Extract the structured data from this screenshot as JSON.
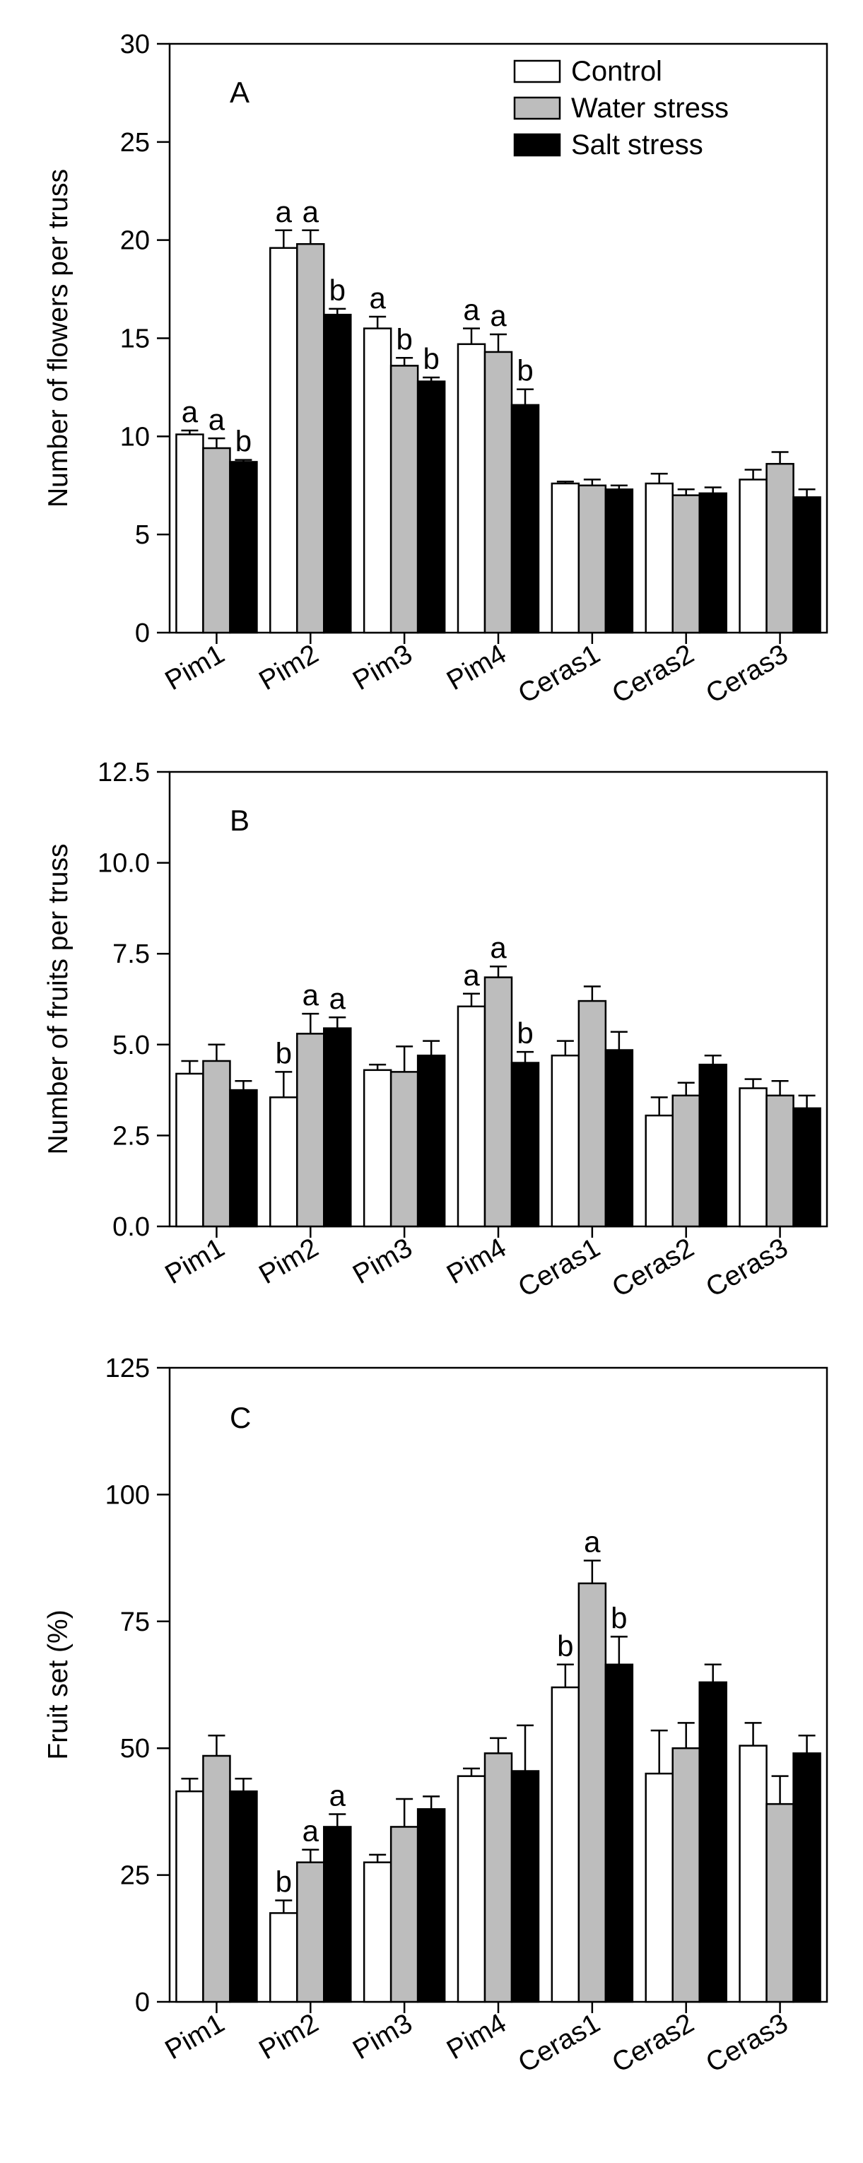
{
  "colors": {
    "control": "#ffffff",
    "water": "#bdbdbd",
    "salt": "#000000",
    "axis": "#000000"
  },
  "legend": {
    "entries": [
      {
        "name": "Control",
        "color": "#ffffff"
      },
      {
        "name": "Water stress",
        "color": "#bdbdbd"
      },
      {
        "name": "Salt stress",
        "color": "#000000"
      }
    ]
  },
  "chart_data": [
    {
      "type": "bar",
      "panel": "A",
      "title": "",
      "xlabel": "",
      "ylabel": "Number of flowers per truss",
      "ylim": [
        0,
        30
      ],
      "yticks": [
        "0",
        "5",
        "10",
        "15",
        "20",
        "25",
        "30"
      ],
      "ytick_values": [
        0,
        5,
        10,
        15,
        20,
        25,
        30
      ],
      "categories": [
        "Pim1",
        "Pim2",
        "Pim3",
        "Pim4",
        "Ceras1",
        "Ceras2",
        "Ceras3"
      ],
      "series": [
        {
          "name": "Control",
          "values": [
            10.1,
            19.6,
            15.5,
            14.7,
            7.6,
            7.6,
            7.8
          ],
          "errors": [
            0.2,
            0.9,
            0.6,
            0.8,
            0.1,
            0.5,
            0.5
          ],
          "letters": [
            "a",
            "a",
            "a",
            "a",
            "",
            "",
            ""
          ]
        },
        {
          "name": "Water stress",
          "values": [
            9.4,
            19.8,
            13.6,
            14.3,
            7.5,
            7.0,
            8.6
          ],
          "errors": [
            0.5,
            0.7,
            0.4,
            0.9,
            0.3,
            0.3,
            0.6
          ],
          "letters": [
            "a",
            "a",
            "b",
            "a",
            "",
            "",
            ""
          ]
        },
        {
          "name": "Salt stress",
          "values": [
            8.7,
            16.2,
            12.8,
            11.6,
            7.3,
            7.1,
            6.9
          ],
          "errors": [
            0.1,
            0.3,
            0.2,
            0.8,
            0.2,
            0.3,
            0.4
          ],
          "letters": [
            "b",
            "b",
            "b",
            "b",
            "",
            "",
            ""
          ]
        }
      ]
    },
    {
      "type": "bar",
      "panel": "B",
      "title": "",
      "xlabel": "",
      "ylabel": "Number of fruits per truss",
      "ylim": [
        0,
        12.5
      ],
      "yticks": [
        "0.0",
        "2.5",
        "5.0",
        "7.5",
        "10.0",
        "12.5"
      ],
      "ytick_values": [
        0,
        2.5,
        5,
        7.5,
        10,
        12.5
      ],
      "categories": [
        "Pim1",
        "Pim2",
        "Pim3",
        "Pim4",
        "Ceras1",
        "Ceras2",
        "Ceras3"
      ],
      "series": [
        {
          "name": "Control",
          "values": [
            4.2,
            3.55,
            4.3,
            6.05,
            4.7,
            3.05,
            3.8
          ],
          "errors": [
            0.35,
            0.7,
            0.15,
            0.35,
            0.4,
            0.5,
            0.25
          ],
          "letters": [
            "",
            "b",
            "",
            "a",
            "",
            "",
            ""
          ]
        },
        {
          "name": "Water stress",
          "values": [
            4.55,
            5.3,
            4.25,
            6.85,
            6.2,
            3.6,
            3.6
          ],
          "errors": [
            0.45,
            0.55,
            0.7,
            0.3,
            0.4,
            0.35,
            0.4
          ],
          "letters": [
            "",
            "a",
            "",
            "a",
            "",
            "",
            ""
          ]
        },
        {
          "name": "Salt stress",
          "values": [
            3.75,
            5.45,
            4.7,
            4.5,
            4.85,
            4.45,
            3.25
          ],
          "errors": [
            0.25,
            0.3,
            0.4,
            0.3,
            0.5,
            0.25,
            0.35
          ],
          "letters": [
            "",
            "a",
            "",
            "b",
            "",
            "",
            ""
          ]
        }
      ]
    },
    {
      "type": "bar",
      "panel": "C",
      "title": "",
      "xlabel": "",
      "ylabel": "Fruit set (%)",
      "ylim": [
        0,
        125
      ],
      "yticks": [
        "0",
        "25",
        "50",
        "75",
        "100",
        "125"
      ],
      "ytick_values": [
        0,
        25,
        50,
        75,
        100,
        125
      ],
      "categories": [
        "Pim1",
        "Pim2",
        "Pim3",
        "Pim4",
        "Ceras1",
        "Ceras2",
        "Ceras3"
      ],
      "series": [
        {
          "name": "Control",
          "values": [
            41.5,
            17.5,
            27.5,
            44.5,
            62.0,
            45.0,
            50.5
          ],
          "errors": [
            2.5,
            2.5,
            1.5,
            1.5,
            4.5,
            8.5,
            4.5
          ],
          "letters": [
            "",
            "b",
            "",
            "",
            "b",
            "",
            ""
          ]
        },
        {
          "name": "Water stress",
          "values": [
            48.5,
            27.5,
            34.5,
            49.0,
            82.5,
            50.0,
            39.0
          ],
          "errors": [
            4.0,
            2.5,
            5.5,
            3.0,
            4.5,
            5.0,
            5.5
          ],
          "letters": [
            "",
            "a",
            "",
            "",
            "a",
            "",
            ""
          ]
        },
        {
          "name": "Salt stress",
          "values": [
            41.5,
            34.5,
            38.0,
            45.5,
            66.5,
            63.0,
            49.0
          ],
          "errors": [
            2.5,
            2.5,
            2.5,
            9.0,
            5.5,
            3.5,
            3.5
          ],
          "letters": [
            "",
            "a",
            "",
            "",
            "b",
            "",
            ""
          ]
        }
      ]
    }
  ]
}
